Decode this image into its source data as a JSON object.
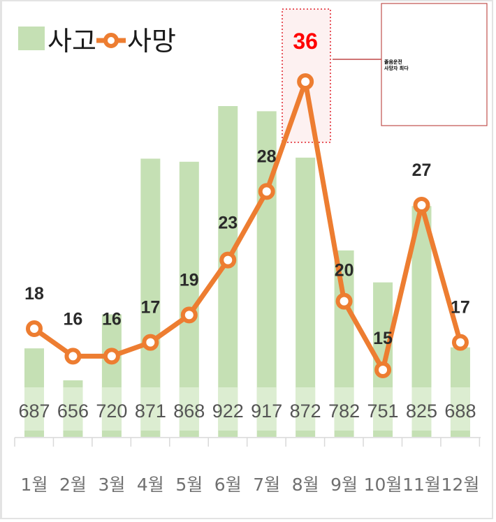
{
  "legend": {
    "accidents_label": "사고",
    "deaths_label": "사망"
  },
  "callout": {
    "line1": "졸음운전",
    "line2": "사망자 최다"
  },
  "colors": {
    "bar": "#c5e0b4",
    "bar_band": "#dcedd1",
    "line": "#ed7d31",
    "peak": "#ff0000",
    "callout_border": "#c0504d",
    "peak_box_fill": "#fdf1f1"
  },
  "chart_data": {
    "type": "bar+line",
    "title": "",
    "categories": [
      "1월",
      "2월",
      "3월",
      "4월",
      "5월",
      "6월",
      "7월",
      "8월",
      "9월",
      "10월",
      "11월",
      "12월"
    ],
    "series": [
      {
        "name": "사고",
        "type": "bar",
        "values": [
          687,
          656,
          720,
          871,
          868,
          922,
          917,
          872,
          782,
          751,
          825,
          688
        ]
      },
      {
        "name": "사망",
        "type": "line",
        "values": [
          18,
          16,
          16,
          17,
          19,
          23,
          28,
          36,
          20,
          15,
          27,
          17
        ]
      }
    ],
    "annotations": [
      {
        "category": "8월",
        "series": "사망",
        "value": 36,
        "highlight": true,
        "note": "졸음운전 사망자 최다"
      }
    ],
    "legend_position": "top-left",
    "grid": false,
    "xlabel": "",
    "ylabel": ""
  }
}
